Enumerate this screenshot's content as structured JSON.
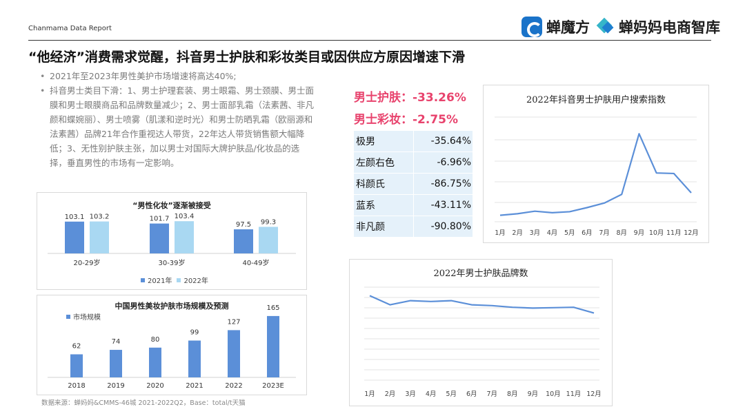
{
  "header": {
    "report_label": "Chanmama Data Report",
    "logo1_text": "蝉魔方",
    "logo2_text": "蝉妈妈电商智库"
  },
  "title": "“他经济”消费需求觉醒，抖音男士护肤和彩妆类目或因供应方原因增速下滑",
  "bullets": [
    "2021年至2023年男性美护市场增速将高达40%;",
    "抖音男士类目下滑：1、男士护理套装、男士眼霜、男士颈膜、男士面膜和男士眼膜商品和品牌数量减少；2、男士面部乳霜（法素茜、非凡颜和蝶婉丽）、男士喷雾（肌漾和逆时光）和男士防晒乳霜（欧丽源和法素茜）品牌21年合作重视达人带货，22年达人带货销售额大幅降低；3、无性别护肤主张，加以男士对国际大牌护肤品/化妆品的选择，垂直男性的市场有一定影响。"
  ],
  "stats": {
    "skincare": "男士护肤：-33.26%",
    "makeup": "男士彩妆：-2.75%"
  },
  "brands": [
    {
      "name": "极男",
      "value": "-35.64%"
    },
    {
      "name": "左颜右色",
      "value": "-6.96%"
    },
    {
      "name": "科颜氏",
      "value": "-86.75%"
    },
    {
      "name": "蓝系",
      "value": "-43.11%"
    },
    {
      "name": "非凡颜",
      "value": "-90.80%"
    }
  ],
  "source": "数据来源：蝉妈妈&CMMS-46城 2021-2022Q2，Base：total/t天猫",
  "colors": {
    "blue_dark": "#5b8fd8",
    "blue_light": "#a9d8f2",
    "line": "#5b8fd8",
    "pink": "#e8436d"
  },
  "chart_data": [
    {
      "type": "bar",
      "title": "“男性化妆”逐渐被接受",
      "categories": [
        "20-29岁",
        "30-39岁",
        "40-49岁"
      ],
      "series": [
        {
          "name": "2021年",
          "values": [
            103.1,
            101.7,
            97.5
          ]
        },
        {
          "name": "2022年",
          "values": [
            103.2,
            103.4,
            99.3
          ]
        }
      ],
      "ylim": [
        80,
        106
      ],
      "legend": "bottom"
    },
    {
      "type": "bar",
      "title": "中国男性美妆护肤市场规模及预测",
      "categories": [
        "2018",
        "2019",
        "2020",
        "2021",
        "2022",
        "2023E"
      ],
      "series": [
        {
          "name": "市场规模",
          "values": [
            62,
            74,
            80,
            99,
            127,
            165
          ]
        }
      ],
      "ylim": [
        0,
        180
      ],
      "legend": "top-left"
    },
    {
      "type": "line",
      "title": "2022年抖音男士护肤用户搜索指数",
      "categories": [
        "1月",
        "2月",
        "3月",
        "4月",
        "5月",
        "6月",
        "7月",
        "8月",
        "9月",
        "10月",
        "11月",
        "12月"
      ],
      "series": [
        {
          "values": [
            1.0,
            1.3,
            1.8,
            1.5,
            1.7,
            2.5,
            3.4,
            5.1,
            17.0,
            9.3,
            9.2,
            5.4
          ]
        }
      ],
      "ylim": [
        0,
        20
      ],
      "grid": true
    },
    {
      "type": "line",
      "title": "2022年男士护肤品牌数",
      "categories": [
        "1月",
        "2月",
        "3月",
        "4月",
        "5月",
        "6月",
        "7月",
        "8月",
        "9月",
        "10月",
        "11月",
        "12月"
      ],
      "series": [
        {
          "values": [
            98,
            87,
            92,
            91,
            92,
            87,
            86,
            84,
            83,
            83.5,
            84,
            77
          ]
        }
      ],
      "ylim": [
        0,
        110
      ],
      "grid": true
    }
  ]
}
